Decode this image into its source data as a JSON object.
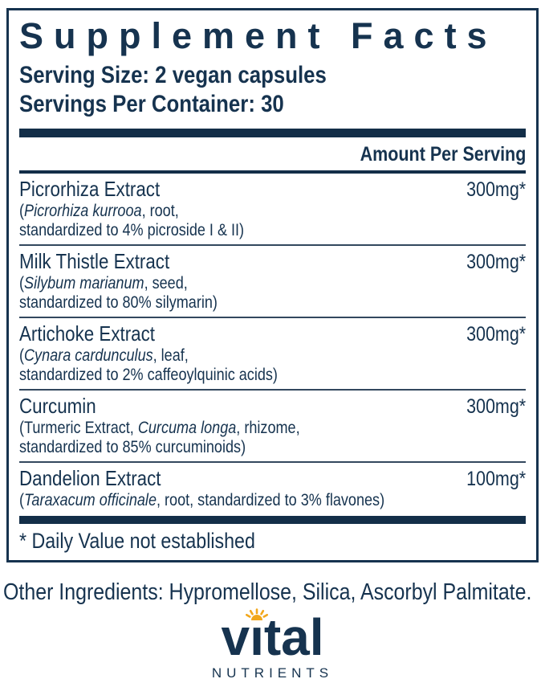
{
  "colors": {
    "navy": "#16334f",
    "bar": "#132e48",
    "rule": "#33485e",
    "gold": "#f2a71b"
  },
  "label": {
    "title": "Supplement Facts",
    "serving_size": "Serving Size: 2 vegan capsules",
    "servings_per_container": "Servings Per Container: 30",
    "amount_header": "Amount Per Serving",
    "rows": [
      {
        "name": "Picrorhiza Extract",
        "amount": "300mg*",
        "desc": [
          [
            {
              "t": "(",
              "i": false
            },
            {
              "t": "Picrorhiza kurrooa",
              "i": true
            },
            {
              "t": ", root,",
              "i": false
            }
          ],
          [
            {
              "t": "standardized to 4% picroside I & II)",
              "i": false
            }
          ]
        ]
      },
      {
        "name": "Milk Thistle Extract",
        "amount": "300mg*",
        "desc": [
          [
            {
              "t": "(",
              "i": false
            },
            {
              "t": "Silybum marianum",
              "i": true
            },
            {
              "t": ", seed,",
              "i": false
            }
          ],
          [
            {
              "t": "standardized to 80% silymarin)",
              "i": false
            }
          ]
        ]
      },
      {
        "name": "Artichoke Extract",
        "amount": "300mg*",
        "desc": [
          [
            {
              "t": "(",
              "i": false
            },
            {
              "t": "Cynara cardunculus",
              "i": true
            },
            {
              "t": ", leaf,",
              "i": false
            }
          ],
          [
            {
              "t": "standardized to 2% caffeoylquinic acids)",
              "i": false
            }
          ]
        ]
      },
      {
        "name": "Curcumin",
        "amount": "300mg*",
        "desc": [
          [
            {
              "t": "(Turmeric Extract, ",
              "i": false
            },
            {
              "t": "Curcuma longa",
              "i": true
            },
            {
              "t": ", rhizome,",
              "i": false
            }
          ],
          [
            {
              "t": "standardized to 85% curcuminoids)",
              "i": false
            }
          ]
        ]
      },
      {
        "name": "Dandelion Extract",
        "amount": "100mg*",
        "desc": [
          [
            {
              "t": "(",
              "i": false
            },
            {
              "t": "Taraxacum officinale",
              "i": true
            },
            {
              "t": ", root, standardized to 3% flavones)",
              "i": false
            }
          ]
        ]
      }
    ],
    "footnote": "* Daily Value not established"
  },
  "footer": {
    "other_ingredients": "Other Ingredients: Hypromellose, Silica, Ascorbyl Palmitate.",
    "logo": {
      "word": "vital",
      "subtext": "NUTRIENTS",
      "icon": "sun-icon"
    }
  }
}
